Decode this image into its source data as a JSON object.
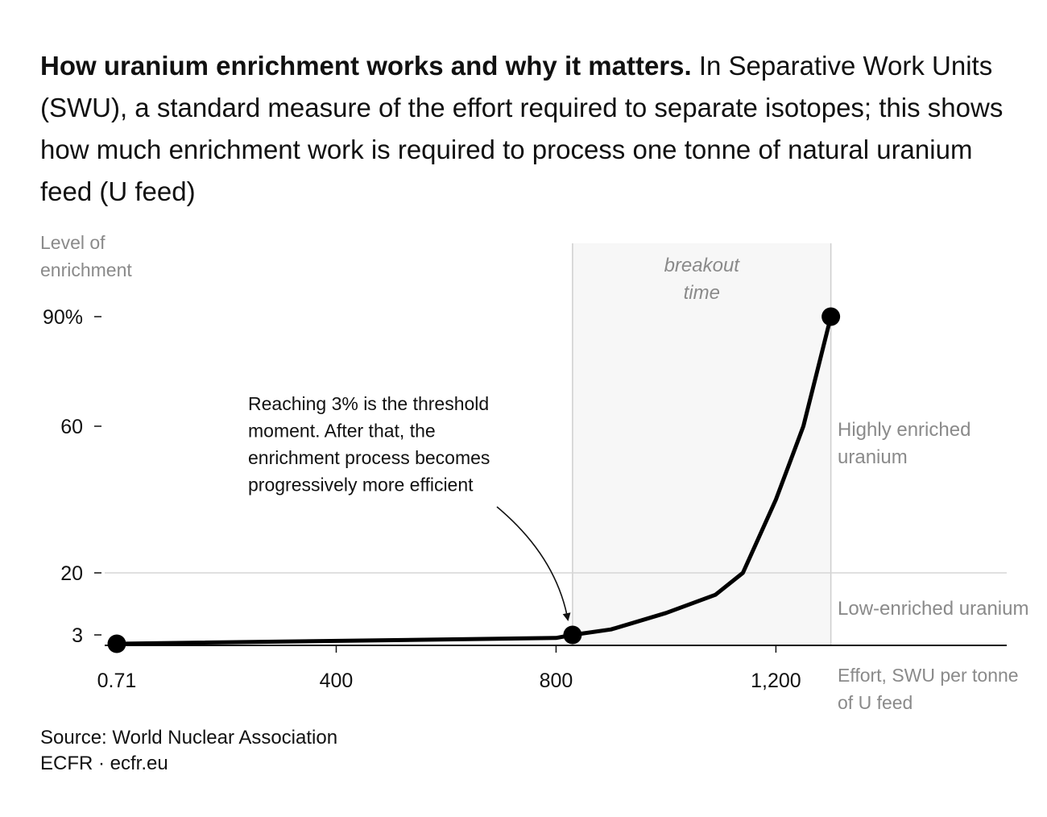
{
  "header": {
    "title": "How uranium enrichment works and why it matters.",
    "description": "In Separative Work Units (SWU), a standard measure of the effort required to separate isotopes; this shows how much enrichment work is required to process one tonne of natural uranium feed (U feed)"
  },
  "chart_data": {
    "type": "line",
    "title": "How uranium enrichment works and why it matters.",
    "ylabel_lines": [
      "Level of",
      "enrichment"
    ],
    "xlabel_lines": [
      "Effort, SWU per tonne",
      "of U feed"
    ],
    "x_ticks": [
      {
        "value": 0.71,
        "label": "0.71"
      },
      {
        "value": 400,
        "label": "400"
      },
      {
        "value": 800,
        "label": "800"
      },
      {
        "value": 1200,
        "label": "1,200"
      }
    ],
    "y_ticks": [
      {
        "value": 3,
        "label": "3"
      },
      {
        "value": 20,
        "label": "20"
      },
      {
        "value": 60,
        "label": "60"
      },
      {
        "value": 90,
        "label": "90%"
      }
    ],
    "xlim": [
      0.71,
      1620
    ],
    "y_scale": "piecewise-linear",
    "y_axis_baseline": 0.71,
    "series": [
      {
        "color": "#000000",
        "x": [
          0.71,
          800,
          830,
          900,
          1000,
          1090,
          1140,
          1170,
          1200,
          1225,
          1250,
          1275,
          1300
        ],
        "y": [
          0.71,
          2.2,
          3,
          4.5,
          9,
          14,
          20,
          30,
          40,
          50,
          60,
          75,
          90
        ],
        "highlight_points": [
          {
            "x": 0.71,
            "y": 0.71
          },
          {
            "x": 830,
            "y": 3
          },
          {
            "x": 1300,
            "y": 90
          }
        ]
      }
    ],
    "shaded_region": {
      "x_start": 830,
      "x_end": 1300,
      "label_lines": [
        "breakout",
        "time"
      ],
      "color": "#f7f7f7"
    },
    "reference_line": {
      "y": 20
    },
    "region_labels": [
      {
        "lines": [
          "Highly enriched",
          "uranium"
        ]
      },
      {
        "lines": [
          "Low-enriched uranium"
        ]
      }
    ],
    "annotation": {
      "lines": [
        "Reaching 3% is the threshold",
        "moment. After that, the",
        "enrichment process becomes",
        "progressively more efficient"
      ],
      "target": {
        "x": 830,
        "y": 3
      }
    },
    "grid": false,
    "legend": "none"
  },
  "footer": {
    "source": "Source: World Nuclear Association",
    "publisher": "ECFR · ecfr.eu"
  }
}
